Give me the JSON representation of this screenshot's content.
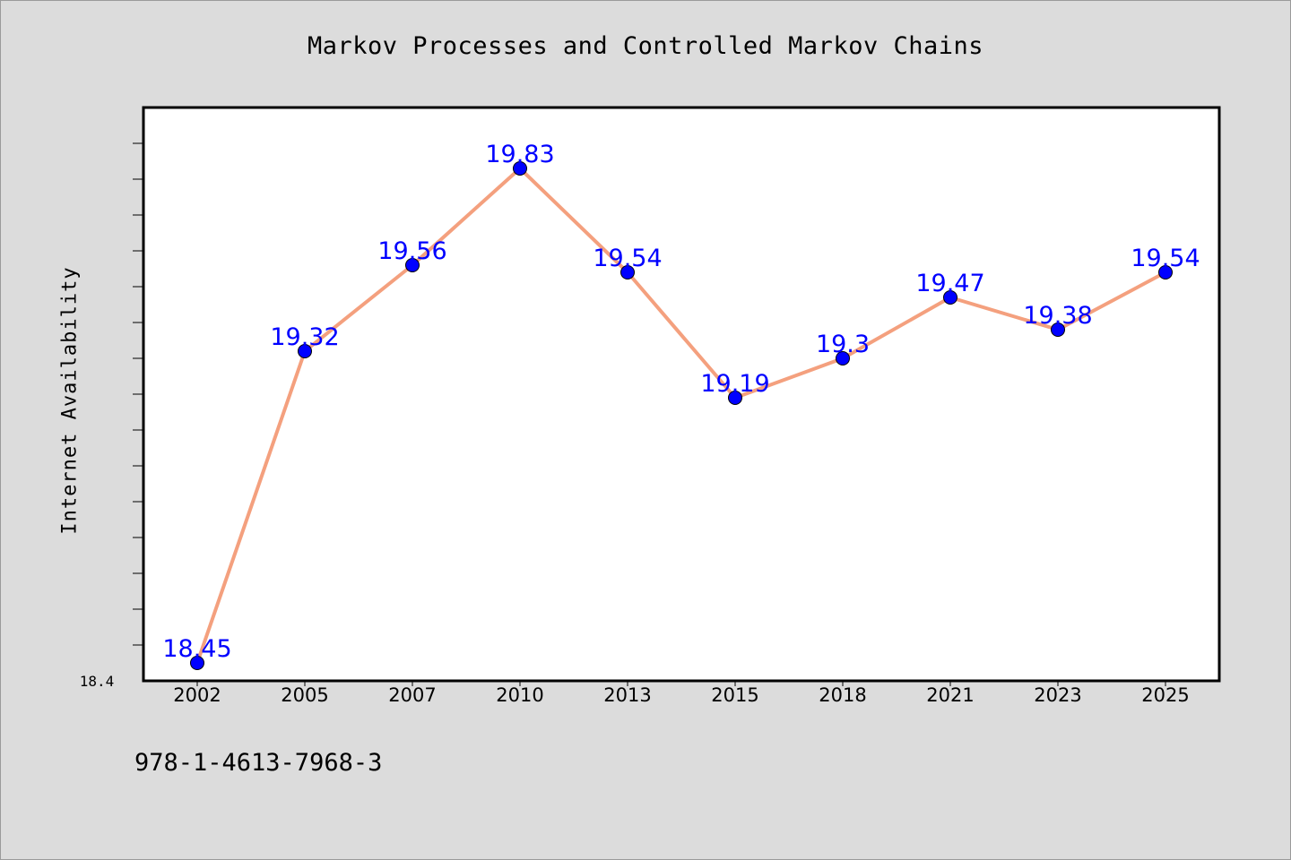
{
  "chart_data": {
    "type": "line",
    "title": "Markov Processes and Controlled Markov Chains",
    "xlabel": "",
    "ylabel": "Internet Availability",
    "categories": [
      "2002",
      "2005",
      "2007",
      "2010",
      "2013",
      "2015",
      "2018",
      "2021",
      "2023",
      "2025"
    ],
    "series": [
      {
        "values": [
          18.45,
          19.32,
          19.56,
          19.83,
          19.54,
          19.19,
          19.3,
          19.47,
          19.38,
          19.54
        ],
        "data_labels": [
          "18.45",
          "19.32",
          "19.56",
          "19.83",
          "19.54",
          "19.19",
          "19.3",
          "19.47",
          "19.38",
          "19.54"
        ]
      }
    ],
    "ylim": [
      18.4,
      20.0
    ],
    "y_tick_labels": [
      "18.4"
    ],
    "grid": false,
    "legend": "none",
    "colors": {
      "line": "#f4a07e",
      "marker": "#0000ff",
      "data_label": "#0000ff",
      "plot_background": "#ffffff",
      "page_background": "#dcdcdc"
    }
  },
  "footer_text": "978-1-4613-7968-3"
}
